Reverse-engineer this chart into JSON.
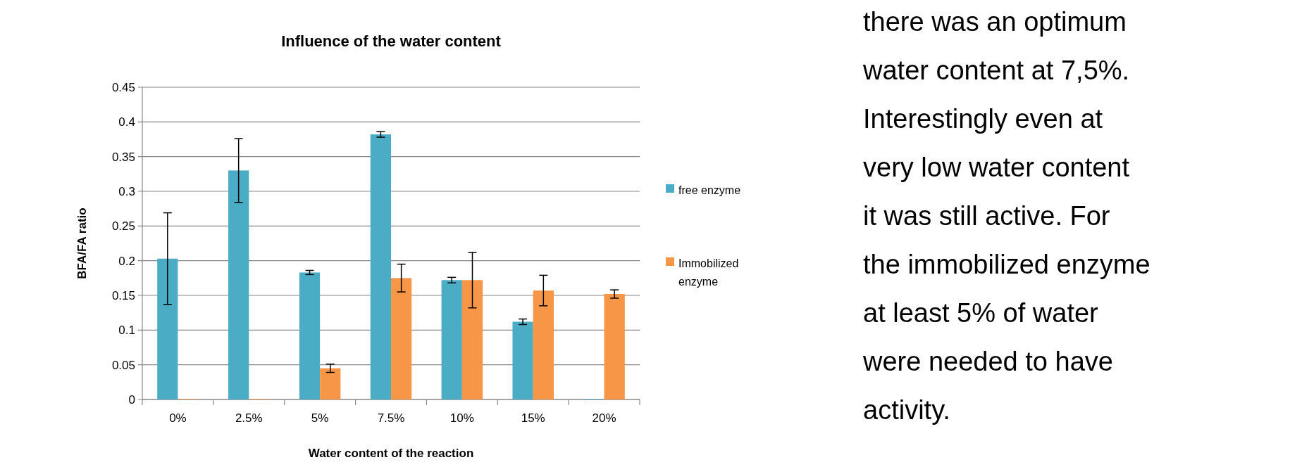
{
  "chart_data": {
    "type": "bar",
    "title": "Influence of the water content",
    "xlabel": "Water content of the reaction",
    "ylabel": "BFA/FA ratio",
    "categories": [
      "0%",
      "2.5%",
      "5%",
      "7.5%",
      "10%",
      "15%",
      "20%"
    ],
    "series": [
      {
        "name": "free enzyme",
        "color": "#4bacc6",
        "values": [
          0.203,
          0.33,
          0.183,
          0.382,
          0.172,
          0.112,
          0
        ],
        "errors": [
          0.066,
          0.046,
          0.003,
          0.004,
          0.004,
          0.004,
          null
        ]
      },
      {
        "name": "Immobilized enzyme",
        "color": "#f79646",
        "values": [
          0,
          0,
          0.045,
          0.175,
          0.172,
          0.157,
          0.152
        ],
        "errors": [
          null,
          null,
          0.006,
          0.02,
          0.04,
          0.022,
          0.006
        ]
      }
    ],
    "ylim": [
      0,
      0.45
    ],
    "yticks": [
      0,
      0.05,
      0.1,
      0.15,
      0.2,
      0.25,
      0.3,
      0.35,
      0.4,
      0.45
    ],
    "grid": "y",
    "legend": "right",
    "annotations": [
      "there was an optimum water content at 7,5%. Interestingly even at very low water content it was still active. For the immobilized enzyme at least 5% of water were needed to have activity."
    ]
  }
}
